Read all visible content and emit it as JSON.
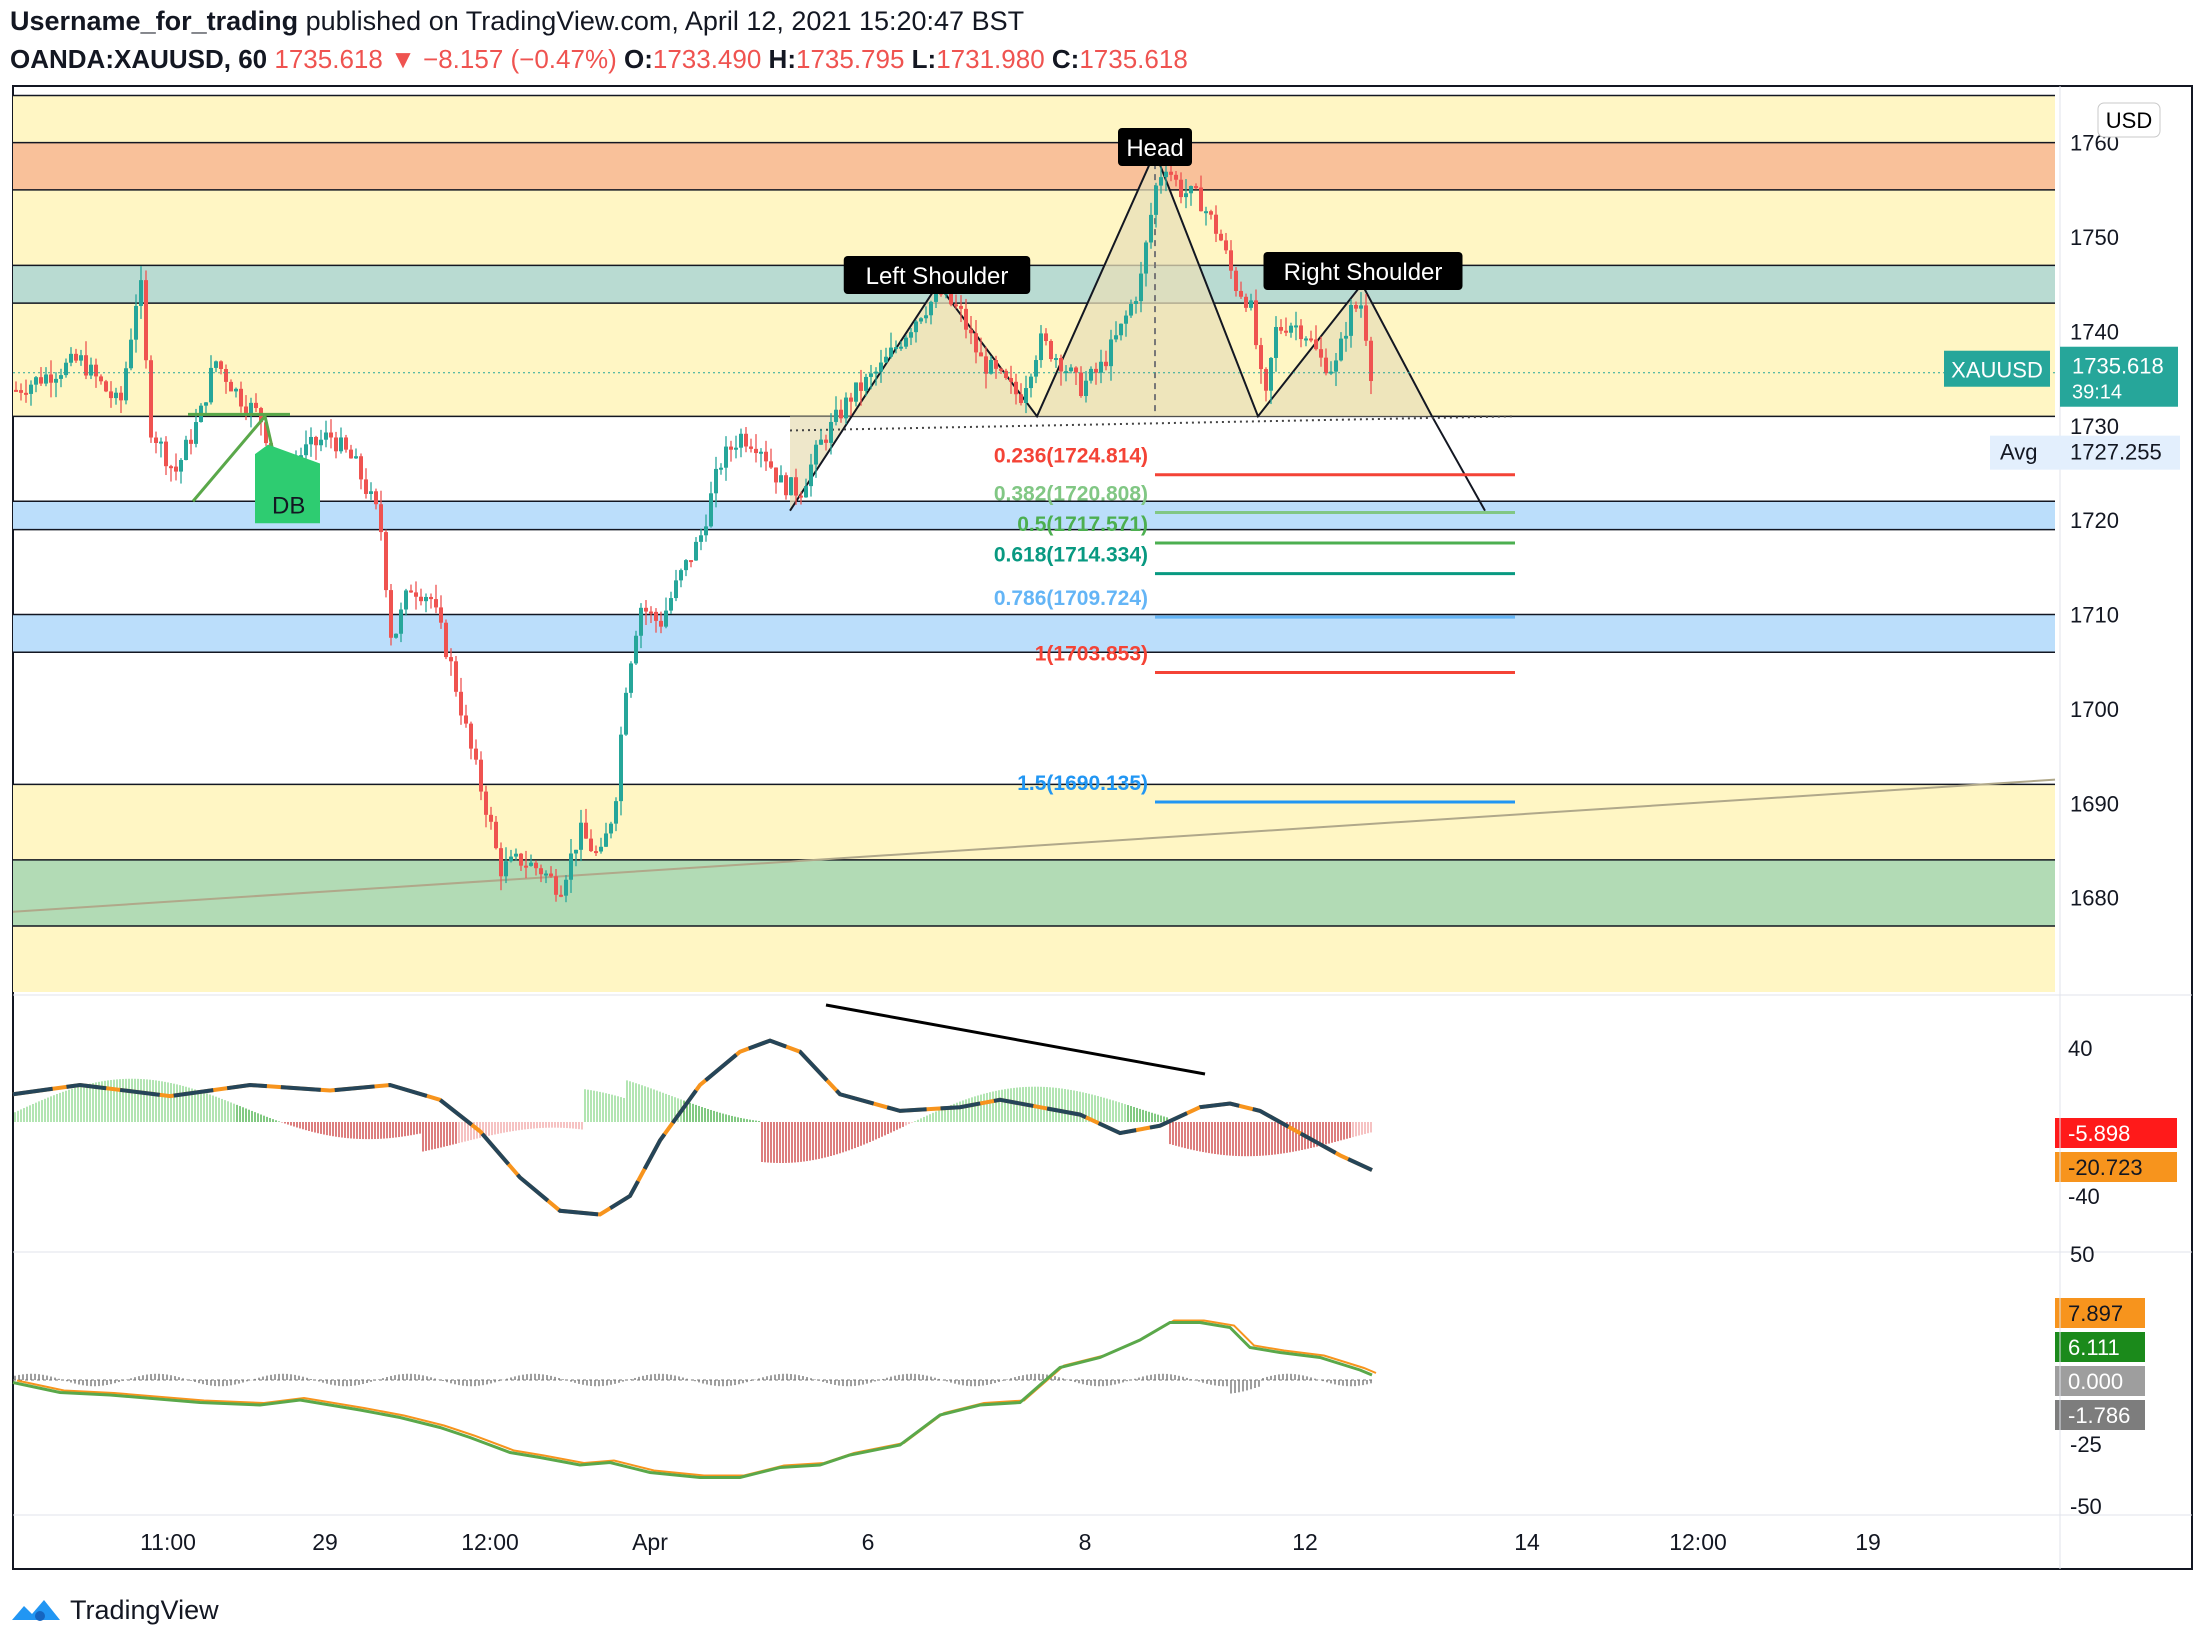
{
  "header": {
    "publisher": "Username_for_trading",
    "published_text": "published on TradingView.com, April 12, 2021 15:20:47 BST",
    "symbol": "OANDA:XAUUSD, 60",
    "last": "1735.618",
    "change": "▼ −8.157 (−0.47%)",
    "o_label": "O:",
    "o": "1733.490",
    "h_label": "H:",
    "h": "1735.795",
    "l_label": "L:",
    "l": "1731.980",
    "c_label": "C:",
    "c": "1735.618"
  },
  "footer": {
    "brand": "TradingView",
    "logo_icon": "tradingview-logo-icon"
  },
  "colors": {
    "zone_yellow": "#fff6c4",
    "zone_orange": "#f9c19a",
    "zone_teal": "#b9dbd2",
    "zone_blue": "#bbdefb",
    "zone_green": "#b2dbb5",
    "candle_up": "#26a69a",
    "candle_down": "#ef5350",
    "pattern_fill": "#e8dfb8",
    "fib_red": "#f44336",
    "fib_lightgreen": "#81c784",
    "fib_green": "#4caf50",
    "fib_teal": "#089981",
    "fib_blue": "#64b5f6",
    "fib_blue2": "#2196f3",
    "macd_signal": "#f7941d",
    "macd_line_bright": "#2196f3",
    "macd_line_dark": "#0d3c61",
    "osc_green": "#5aa84a",
    "osc_orange": "#f7941d",
    "osc_hist": "#9e9e9e",
    "accent_teal": "#26a69a"
  },
  "chart_data": {
    "type": "candlestick",
    "symbol": "XAUUSD",
    "timeframe": "60",
    "currency_badge": "USD",
    "ylim": [
      1670,
      1766
    ],
    "y_ticks": [
      1680,
      1690,
      1700,
      1710,
      1720,
      1730,
      1740,
      1750,
      1760
    ],
    "x_ticks": [
      "11:00",
      "29",
      "12:00",
      "Apr",
      "6",
      "8",
      "12",
      "14",
      "12:00",
      "19"
    ],
    "last_price_label": "XAUUSD",
    "last_price": "1735.618",
    "countdown": "39:14",
    "avg_label": "Avg",
    "avg_price": "1727.255",
    "avg_value": 1727.255,
    "annotations": [
      "Head",
      "Left Shoulder",
      "Right Shoulder",
      "DB"
    ],
    "zones": [
      {
        "from": 1755,
        "to": 1765,
        "color": "zone_yellow"
      },
      {
        "from": 1755,
        "to": 1760,
        "color": "zone_orange"
      },
      {
        "from": 1747,
        "to": 1755,
        "color": "zone_yellow"
      },
      {
        "from": 1743,
        "to": 1747,
        "color": "zone_teal"
      },
      {
        "from": 1731,
        "to": 1743,
        "color": "zone_yellow"
      },
      {
        "from": 1719,
        "to": 1722,
        "color": "zone_blue"
      },
      {
        "from": 1706,
        "to": 1710,
        "color": "zone_blue"
      },
      {
        "from": 1684,
        "to": 1692,
        "color": "zone_yellow"
      },
      {
        "from": 1677,
        "to": 1684,
        "color": "zone_green"
      },
      {
        "from": 1670,
        "to": 1677,
        "color": "zone_yellow"
      }
    ],
    "fib_levels": [
      {
        "label": "0.236(1724.814)",
        "value": 1724.814,
        "color": "fib_red"
      },
      {
        "label": "0.382(1720.808)",
        "value": 1720.808,
        "color": "fib_lightgreen"
      },
      {
        "label": "0.5(1717.571)",
        "value": 1717.571,
        "color": "fib_green"
      },
      {
        "label": "0.618(1714.334)",
        "value": 1714.334,
        "color": "fib_teal"
      },
      {
        "label": "0.786(1709.724)",
        "value": 1709.724,
        "color": "fib_blue"
      },
      {
        "label": "1(1703.853)",
        "value": 1703.853,
        "color": "fib_red"
      },
      {
        "label": "1.5(1690.135)",
        "value": 1690.135,
        "color": "fib_blue2"
      }
    ],
    "price_path": [
      [
        0,
        1733
      ],
      [
        40,
        1735
      ],
      [
        80,
        1737
      ],
      [
        120,
        1732
      ],
      [
        140,
        1746
      ],
      [
        150,
        1730
      ],
      [
        175,
        1725
      ],
      [
        200,
        1731
      ],
      [
        215,
        1737
      ],
      [
        240,
        1733
      ],
      [
        260,
        1731
      ],
      [
        285,
        1723
      ],
      [
        300,
        1727
      ],
      [
        330,
        1729
      ],
      [
        355,
        1726
      ],
      [
        380,
        1720
      ],
      [
        392,
        1707
      ],
      [
        410,
        1713
      ],
      [
        430,
        1712
      ],
      [
        450,
        1705
      ],
      [
        470,
        1696
      ],
      [
        490,
        1688
      ],
      [
        500,
        1683
      ],
      [
        520,
        1684
      ],
      [
        540,
        1683
      ],
      [
        560,
        1681
      ],
      [
        580,
        1687
      ],
      [
        600,
        1684
      ],
      [
        615,
        1690
      ],
      [
        625,
        1702
      ],
      [
        640,
        1711
      ],
      [
        660,
        1709
      ],
      [
        680,
        1714
      ],
      [
        700,
        1718
      ],
      [
        720,
        1726
      ],
      [
        740,
        1729
      ],
      [
        760,
        1728
      ],
      [
        780,
        1724
      ],
      [
        800,
        1723
      ],
      [
        820,
        1728
      ],
      [
        850,
        1733
      ],
      [
        880,
        1736
      ],
      [
        900,
        1739
      ],
      [
        920,
        1742
      ],
      [
        940,
        1744
      ],
      [
        960,
        1742
      ],
      [
        980,
        1737
      ],
      [
        1000,
        1735
      ],
      [
        1020,
        1733
      ],
      [
        1040,
        1739
      ],
      [
        1060,
        1737
      ],
      [
        1080,
        1734
      ],
      [
        1100,
        1736
      ],
      [
        1120,
        1740
      ],
      [
        1140,
        1745
      ],
      [
        1155,
        1755
      ],
      [
        1165,
        1758
      ],
      [
        1180,
        1755
      ],
      [
        1200,
        1754
      ],
      [
        1220,
        1750
      ],
      [
        1235,
        1745
      ],
      [
        1250,
        1743
      ],
      [
        1265,
        1732
      ],
      [
        1275,
        1740
      ],
      [
        1290,
        1741
      ],
      [
        1305,
        1740
      ],
      [
        1320,
        1737
      ],
      [
        1335,
        1736
      ],
      [
        1350,
        1742
      ],
      [
        1362,
        1743
      ],
      [
        1372,
        1735
      ]
    ],
    "macd": {
      "histogram": "-5.898",
      "signal": "-20.723",
      "y_ticks": [
        40,
        -40
      ],
      "ylim": [
        -55,
        55
      ]
    },
    "oscillator": {
      "labels": [
        "7.897",
        "6.111",
        "0.000",
        "-1.786"
      ],
      "y_ticks": [
        50,
        -25,
        -50
      ],
      "ylim": [
        -55,
        55
      ]
    }
  }
}
